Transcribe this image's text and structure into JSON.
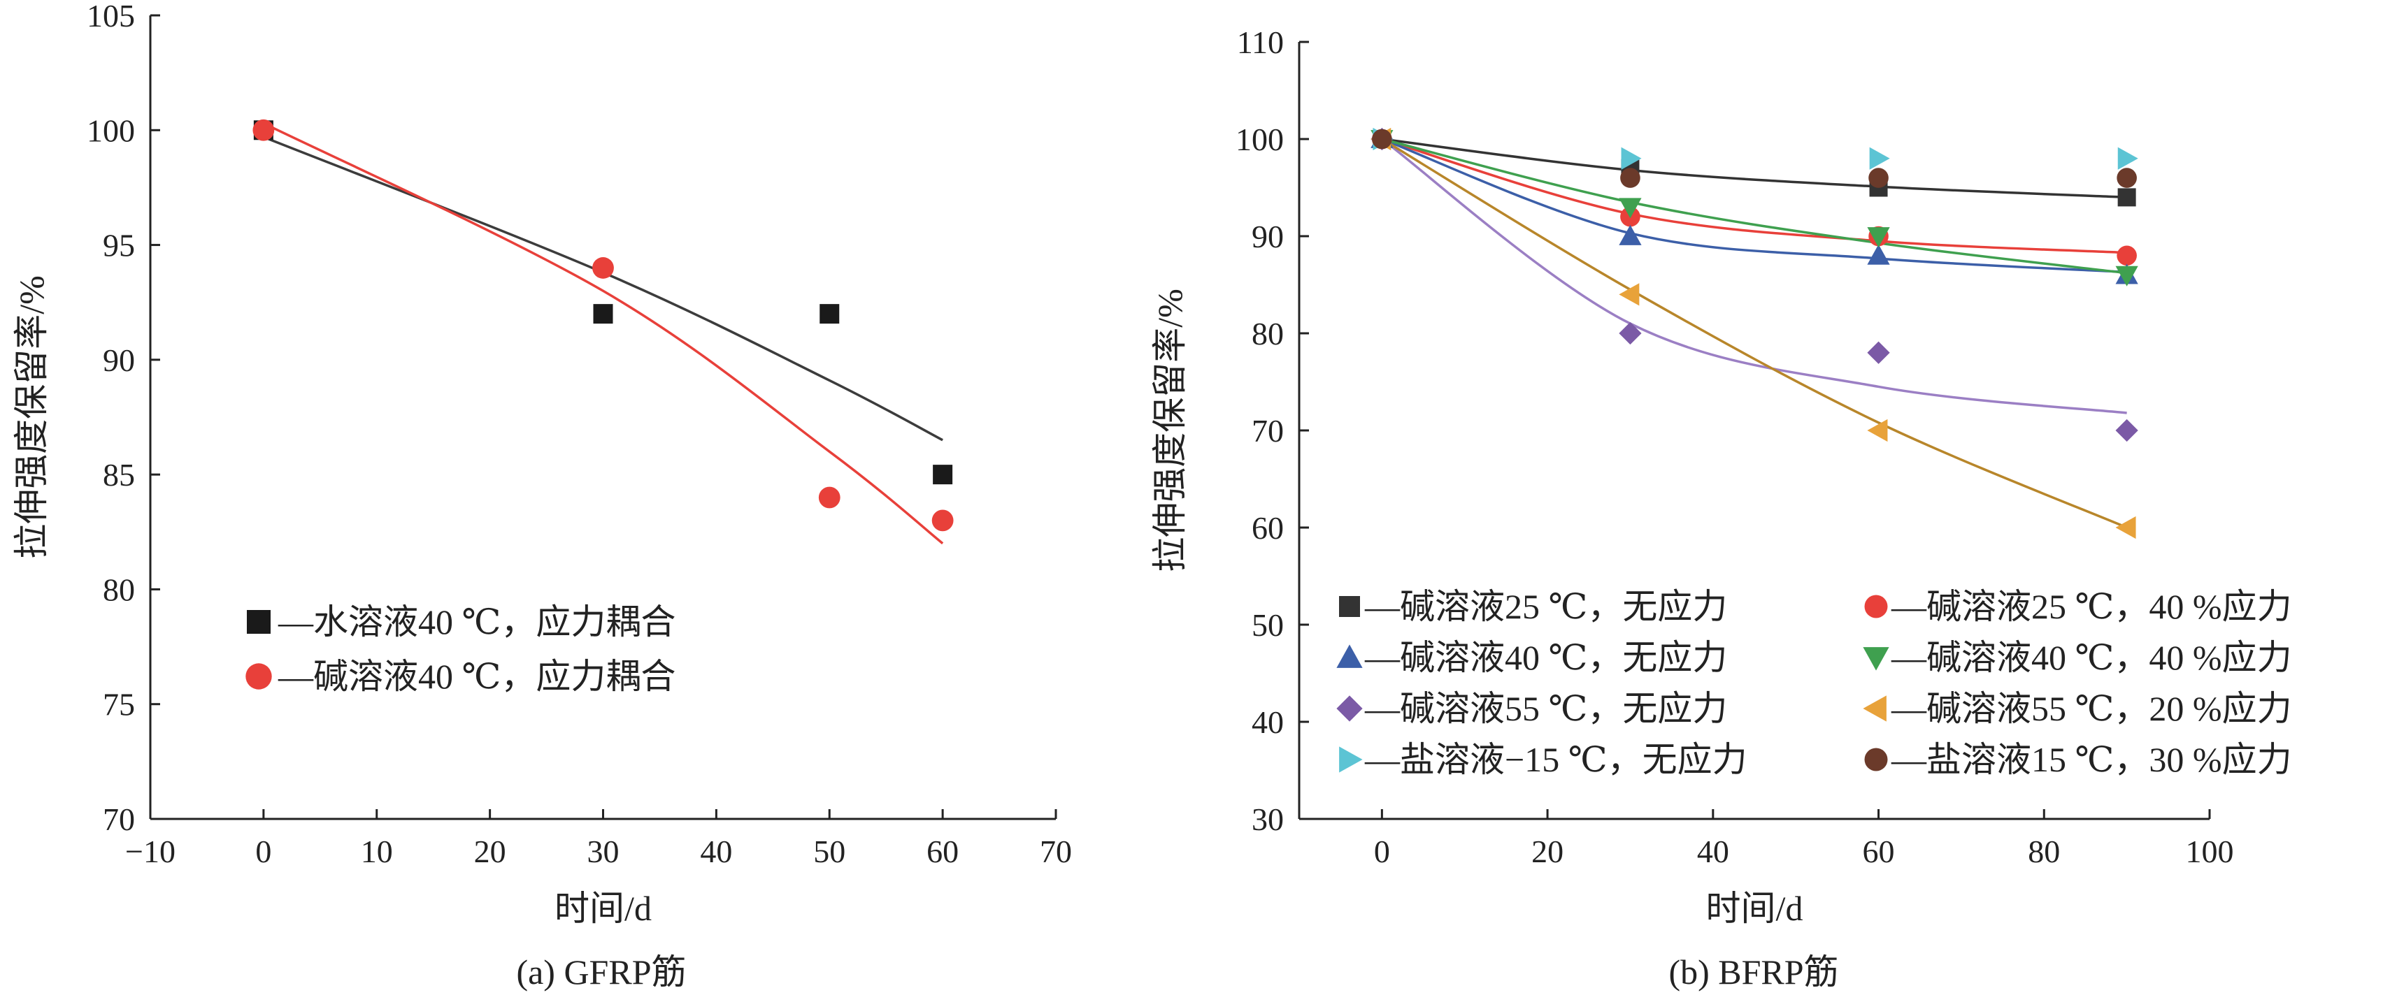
{
  "chart_data": [
    {
      "type": "scatter",
      "caption": "(a) GFRP筋",
      "xlabel": "时间/d",
      "ylabel": "拉伸强度保留率/%",
      "xlim": [
        -10,
        70
      ],
      "ylim": [
        70,
        105
      ],
      "xticks": [
        -10,
        0,
        10,
        20,
        30,
        40,
        50,
        60,
        70
      ],
      "xtick_labels": [
        "−10",
        "0",
        "10",
        "20",
        "30",
        "40",
        "50",
        "60",
        "70"
      ],
      "yticks": [
        70,
        75,
        80,
        85,
        90,
        95,
        100,
        105
      ],
      "ytick_labels": [
        "70",
        "75",
        "80",
        "85",
        "90",
        "95",
        "100",
        "105"
      ],
      "grid": false,
      "legend_position": "bottom-left",
      "series": [
        {
          "name": "—水溶液40 ℃，应力耦合",
          "marker": "square",
          "color": "#1a1a1a",
          "fit_color": "#3c3c3c",
          "x": [
            0,
            30,
            50,
            60
          ],
          "y": [
            100,
            92,
            92,
            85
          ],
          "fit_y": [
            99.7,
            93.8,
            89.1,
            86.5
          ]
        },
        {
          "name": "—碱溶液40 ℃，应力耦合",
          "marker": "circle",
          "color": "#e8403a",
          "fit_color": "#e8403a",
          "x": [
            0,
            30,
            50,
            60
          ],
          "y": [
            100,
            94,
            84,
            83
          ],
          "fit_y": [
            100.3,
            93.0,
            86.0,
            82.0
          ]
        }
      ]
    },
    {
      "type": "scatter",
      "caption": "(b) BFRP筋",
      "xlabel": "时间/d",
      "ylabel": "拉伸强度保留率/%",
      "xlim": [
        -10,
        100
      ],
      "ylim": [
        30,
        110
      ],
      "xticks": [
        0,
        20,
        40,
        60,
        80,
        100
      ],
      "xtick_labels": [
        "0",
        "20",
        "40",
        "60",
        "80",
        "100"
      ],
      "yticks": [
        30,
        40,
        50,
        60,
        70,
        80,
        90,
        100,
        110
      ],
      "ytick_labels": [
        "30",
        "40",
        "50",
        "60",
        "70",
        "80",
        "90",
        "100",
        "110"
      ],
      "grid": false,
      "legend_position": "bottom",
      "series": [
        {
          "name": "—碱溶液25 ℃，无应力",
          "marker": "square",
          "color": "#333333",
          "fit_color": "#333333",
          "x": [
            0,
            30,
            60,
            90
          ],
          "y": [
            100,
            97,
            95,
            94
          ],
          "fit_y": [
            100,
            96.8,
            95.1,
            94.0
          ]
        },
        {
          "name": "—碱溶液25 ℃，40 %应力",
          "marker": "circle",
          "color": "#e8403a",
          "fit_color": "#e8403a",
          "x": [
            0,
            30,
            60,
            90
          ],
          "y": [
            100,
            92,
            90,
            88
          ],
          "fit_y": [
            100,
            92.3,
            89.5,
            88.3
          ]
        },
        {
          "name": "—碱溶液40 ℃，无应力",
          "marker": "triangle-up",
          "color": "#3c5fa8",
          "fit_color": "#3c5fa8",
          "x": [
            0,
            30,
            60,
            90
          ],
          "y": [
            100,
            90,
            88,
            86
          ],
          "fit_y": [
            100,
            90.3,
            87.7,
            86.3
          ]
        },
        {
          "name": "—碱溶液40 ℃，40 %应力",
          "marker": "triangle-down",
          "color": "#3fa04f",
          "fit_color": "#3fa04f",
          "x": [
            0,
            30,
            60,
            90
          ],
          "y": [
            100,
            93,
            90,
            86
          ],
          "fit_y": [
            100,
            93.5,
            89.3,
            86.2
          ]
        },
        {
          "name": "—碱溶液55 ℃，无应力",
          "marker": "diamond",
          "color": "#7b5aa6",
          "fit_color": "#9b7fc4",
          "x": [
            0,
            30,
            60,
            90
          ],
          "y": [
            100,
            80,
            78,
            70
          ],
          "fit_y": [
            100,
            81.0,
            74.5,
            71.8
          ]
        },
        {
          "name": "—碱溶液55 ℃，20 %应力",
          "marker": "triangle-left",
          "color": "#e8a23a",
          "fit_color": "#b8862a",
          "x": [
            0,
            30,
            60,
            90
          ],
          "y": [
            100,
            84,
            70,
            60
          ],
          "fit_y": [
            100,
            84.5,
            70.8,
            60.0
          ]
        },
        {
          "name": "—盐溶液−15 ℃，无应力",
          "marker": "triangle-right",
          "color": "#5cc4d4",
          "fit_color": "#5cc4d4",
          "x": [
            0,
            30,
            60,
            90
          ],
          "y": [
            100,
            98,
            98,
            98
          ],
          "fit_y": null
        },
        {
          "name": "—盐溶液15 ℃，30 %应力",
          "marker": "circle",
          "color": "#6b3a2a",
          "fit_color": "#6b3a2a",
          "x": [
            0,
            30,
            60,
            90
          ],
          "y": [
            100,
            96,
            96,
            96
          ],
          "fit_y": null
        }
      ]
    }
  ]
}
